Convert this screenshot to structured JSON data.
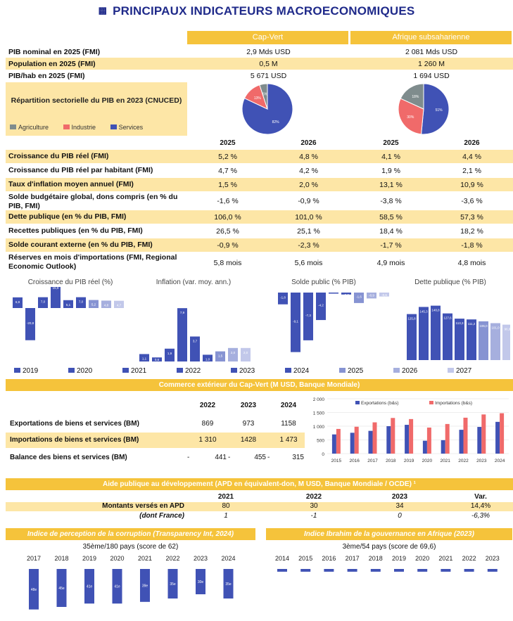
{
  "title": "PRINCIPAUX INDICATEURS MACROECONOMIQUES",
  "colors": {
    "gold": "#f5c33b",
    "pale": "#fde6a6",
    "navy": "#1f2a8a",
    "bar": "#4052b5",
    "red": "#f06a6a",
    "grey": "#7f8c8d"
  },
  "header": {
    "country": "Cap-Vert",
    "region": "Afrique subsaharienne"
  },
  "top_rows": [
    {
      "label": "PIB nominal en 2025 (FMI)",
      "cv": "2,9 Mds USD",
      "ssa": "2 081 Mds USD"
    },
    {
      "label": "Population en 2025 (FMI)",
      "cv": "0,5  M",
      "ssa": "1 260 M"
    },
    {
      "label": "PIB/hab en 2025 (FMI)",
      "cv": "5 671 USD",
      "ssa": "1 694 USD"
    }
  ],
  "pie_section": {
    "title": "Répartition sectorielle du PIB en 2023 (CNUCED)",
    "legend": [
      "Agriculture",
      "Industrie",
      "Services"
    ],
    "cv": {
      "agriculture": 5,
      "industrie": 13,
      "services": 82,
      "labels": [
        "5%",
        "13%",
        "82%"
      ]
    },
    "ssa": {
      "agriculture": 18,
      "industrie": 30,
      "services": 51,
      "labels": [
        "18%",
        "30%",
        "51%"
      ]
    }
  },
  "years_header": [
    "2025",
    "2026",
    "2025",
    "2026"
  ],
  "indicators": [
    {
      "label": "Croissance du PIB réel (FMI)",
      "v": [
        "5,2 %",
        "4,8 %",
        "4,1 %",
        "4,4 %"
      ]
    },
    {
      "label": "Croissance du PIB réel par habitant (FMI)",
      "v": [
        "4,7 %",
        "4,2 %",
        "1,9 %",
        "2,1 %"
      ]
    },
    {
      "label": "Taux d'inflation moyen annuel (FMI)",
      "v": [
        "1,5 %",
        "2,0 %",
        "13,1 %",
        "10,9 %"
      ]
    },
    {
      "label": "Solde budgétaire global, dons compris (en % du PIB, FMI)",
      "v": [
        "-1,6 %",
        "-0,9 %",
        "-3,8 %",
        "-3,6 %"
      ]
    },
    {
      "label": "Dette publique (en % du PIB, FMI)",
      "v": [
        "106,0 %",
        "101,0 %",
        "58,5 %",
        "57,3 %"
      ]
    },
    {
      "label": "Recettes publiques (en % du PIB, FMI)",
      "v": [
        "26,5 %",
        "25,1 %",
        "18,4 %",
        "18,2 %"
      ]
    },
    {
      "label": "Solde courant externe (en % du PIB, FMI)",
      "v": [
        "-0,9 %",
        "-2,3 %",
        "-1,7 %",
        "-1,8 %"
      ]
    },
    {
      "label": "Réserves en mois d'importations (FMI, Regional Economic Outlook)",
      "v": [
        "5,8 mois",
        "5,6 mois",
        "4,9 mois",
        "4,8 mois"
      ]
    }
  ],
  "chart_data": [
    {
      "type": "bar",
      "title": "Croissance du PIB réel (%)",
      "categories": [
        "2019",
        "2020",
        "2021",
        "2022",
        "2023",
        "2024",
        "2025",
        "2026",
        "2027"
      ],
      "values": [
        6.9,
        -20.8,
        7.0,
        15.9,
        5.1,
        7.0,
        5.2,
        4.8,
        4.7
      ],
      "labels": [
        "6,9",
        "-20,8",
        "7,0",
        "15,9",
        "5,1",
        "7,0",
        "5,2",
        "4,8",
        "4,7"
      ]
    },
    {
      "type": "bar",
      "title": "Inflation (var. moy. ann.)",
      "categories": [
        "2019",
        "2020",
        "2021",
        "2022",
        "2023",
        "2024",
        "2025",
        "2026",
        "2027"
      ],
      "values": [
        1.1,
        0.6,
        1.9,
        7.9,
        3.7,
        1.0,
        1.5,
        2.0,
        2.0
      ],
      "labels": [
        "1,1",
        "0,6",
        "1,9",
        "7,9",
        "3,7",
        "1,0",
        "1,5",
        "2,0",
        "2,0"
      ]
    },
    {
      "type": "bar",
      "title": "Solde public (% PIB)",
      "categories": [
        "2019",
        "2020",
        "2021",
        "2022",
        "2023",
        "2024",
        "2025",
        "2026",
        "2027"
      ],
      "values": [
        -1.8,
        -9.1,
        -7.3,
        -4.2,
        -0.1,
        -0.3,
        -1.6,
        -0.9,
        -0.6
      ],
      "labels": [
        "-1,8",
        "-9,1",
        "-7,3",
        "-4,2",
        "-0,1",
        "-0,3",
        "-1,6",
        "-0,9",
        "-0,6"
      ]
    },
    {
      "type": "bar",
      "title": "Dette publique (% PIB)",
      "categories": [
        "2019",
        "2020",
        "2021",
        "2022",
        "2023",
        "2024",
        "2025",
        "2026",
        "2027"
      ],
      "values": [
        125.8,
        145.3,
        148.8,
        127.6,
        113.3,
        111.2,
        106.0,
        101.0,
        96.9
      ],
      "labels": [
        "125,8",
        "145,3",
        "148,8",
        "127,6",
        "113,3",
        "111,2",
        "106,0",
        "101,0",
        "96,9"
      ]
    }
  ],
  "mini_legend": [
    "2019",
    "2020",
    "2021",
    "2022",
    "2023",
    "2024",
    "2025",
    "2026",
    "2027"
  ],
  "mini_legend_colors": [
    "#4052b5",
    "#4052b5",
    "#4052b5",
    "#4052b5",
    "#4052b5",
    "#4052b5",
    "#8693d2",
    "#a6afde",
    "#c2c8ea"
  ],
  "trade": {
    "banner": "Commerce extérieur du Cap-Vert (M USD, Banque Mondiale)",
    "years": [
      "2022",
      "2023",
      "2024"
    ],
    "rows": [
      {
        "label": "Exportations de biens et services (BM)",
        "v": [
          "869",
          "973",
          "1158"
        ]
      },
      {
        "label": "Importations de biens et services (BM)",
        "v": [
          "1 310",
          "1428",
          "1 473"
        ]
      },
      {
        "label": "Balance des biens et services (BM)",
        "v": [
          "441",
          "455",
          "315"
        ],
        "signs": [
          "-",
          "-",
          "-"
        ]
      }
    ],
    "chart": {
      "type": "bar",
      "categories": [
        "2015",
        "2016",
        "2017",
        "2018",
        "2019",
        "2020",
        "2021",
        "2022",
        "2023",
        "2024"
      ],
      "series": [
        {
          "name": "Exportations (b&s)",
          "values": [
            700,
            760,
            830,
            1000,
            1050,
            470,
            490,
            869,
            973,
            1158
          ]
        },
        {
          "name": "Importations (b&s)",
          "values": [
            900,
            980,
            1140,
            1300,
            1260,
            950,
            1080,
            1310,
            1428,
            1473
          ]
        }
      ],
      "ylim": [
        0,
        2000
      ],
      "yticks": [
        "2 000",
        "1 500",
        "1 000",
        "500",
        "0"
      ]
    }
  },
  "apd": {
    "banner": "Aide publique au développement (APD en équivalent-don, M USD, Banque Mondiale / OCDE) ¹",
    "headers": [
      "2021",
      "2022",
      "2023",
      "Var."
    ],
    "rows": [
      {
        "label": "Montants versés en APD",
        "v": [
          "80",
          "30",
          "34",
          "14,4%"
        ]
      },
      {
        "label": "(dont France)",
        "v": [
          "1",
          "-1",
          "0",
          "-6,3%"
        ]
      }
    ]
  },
  "cpi": {
    "banner": "Indice de perception de la corruption (Transparency Int, 2024)",
    "subtitle": "35ème/180 pays (score de 62)",
    "years": [
      "2017",
      "2018",
      "2019",
      "2020",
      "2021",
      "2022",
      "2023",
      "2024"
    ],
    "ranks": [
      48,
      45,
      41,
      41,
      39,
      35,
      30,
      35
    ],
    "labels": [
      "48e",
      "45e",
      "41e",
      "41e",
      "39e",
      "35e",
      "30e",
      "35e"
    ]
  },
  "iiag": {
    "banner": "Indice Ibrahim de la gouvernance en Afrique (2023)",
    "subtitle": "3ème/54 pays (score de 69,6)",
    "years": [
      "2014",
      "2015",
      "2016",
      "2017",
      "2018",
      "2019",
      "2020",
      "2021",
      "2022",
      "2023"
    ],
    "ranks": [
      3,
      3,
      3,
      3,
      3,
      3,
      3,
      3,
      3,
      3
    ]
  }
}
